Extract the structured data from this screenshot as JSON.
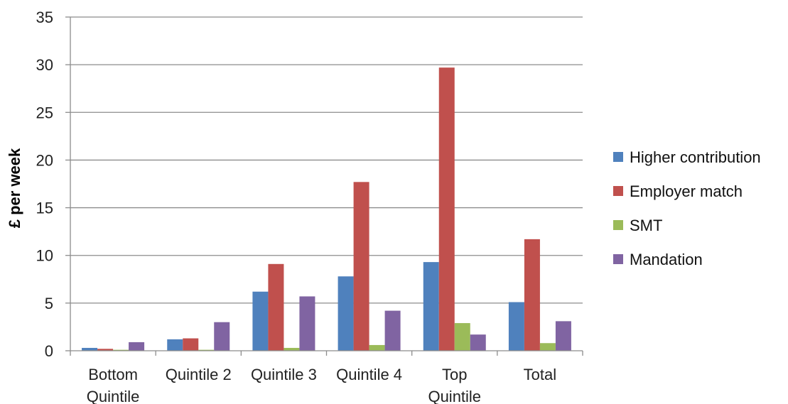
{
  "chart_data": {
    "type": "bar",
    "title": "",
    "xlabel": "",
    "ylabel": "£ per week",
    "ylim": [
      0,
      35
    ],
    "yticks": [
      0,
      5,
      10,
      15,
      20,
      25,
      30,
      35
    ],
    "grid": true,
    "legend_position": "right",
    "categories": [
      [
        "Bottom",
        "Quintile"
      ],
      [
        "Quintile 2"
      ],
      [
        "Quintile 3"
      ],
      [
        "Quintile 4"
      ],
      [
        "Top",
        "Quintile"
      ],
      [
        "Total"
      ]
    ],
    "series": [
      {
        "name": "Higher contribution",
        "color": "#4F81BD",
        "values": [
          0.3,
          1.2,
          6.2,
          7.8,
          9.3,
          5.1
        ]
      },
      {
        "name": "Employer match",
        "color": "#C0504D",
        "values": [
          0.2,
          1.3,
          9.1,
          17.7,
          29.7,
          11.7
        ]
      },
      {
        "name": "SMT",
        "color": "#9BBB59",
        "values": [
          0.1,
          0.1,
          0.3,
          0.6,
          2.9,
          0.8
        ]
      },
      {
        "name": "Mandation",
        "color": "#8064A2",
        "values": [
          0.9,
          3.0,
          5.7,
          4.2,
          1.7,
          3.1
        ]
      }
    ]
  }
}
